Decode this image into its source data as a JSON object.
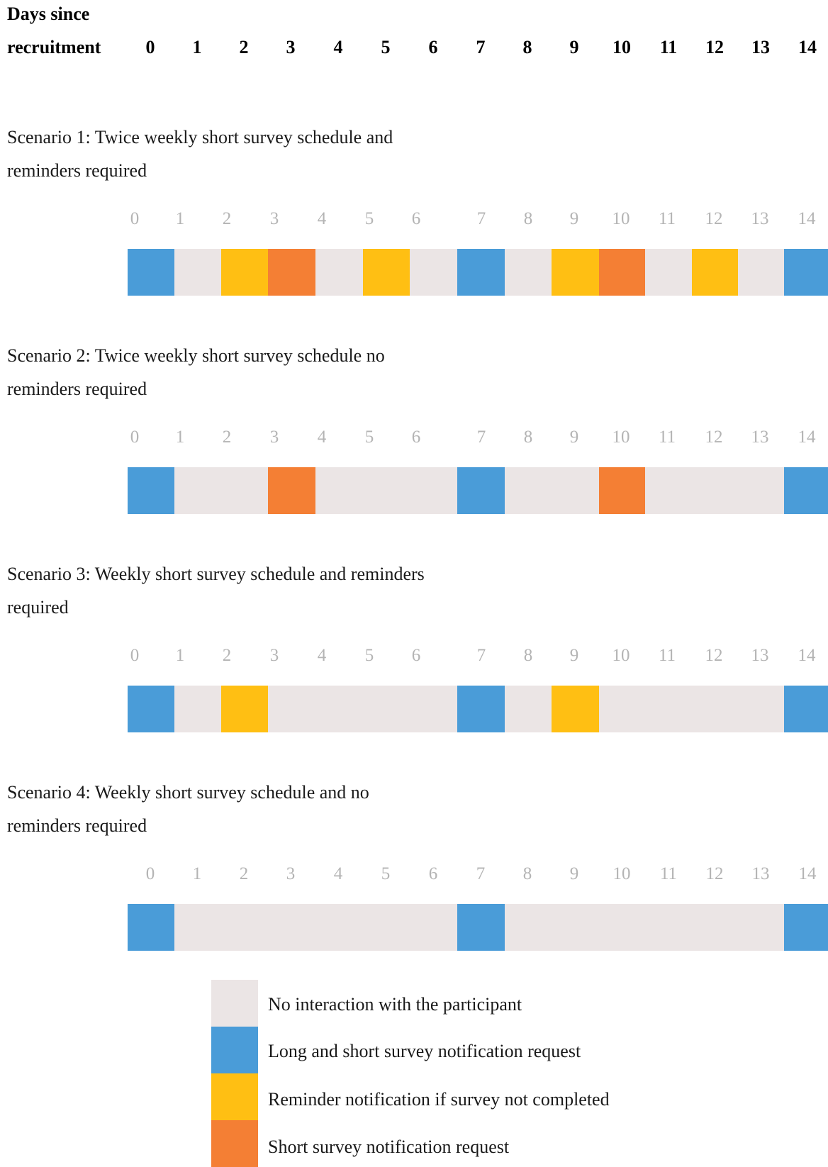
{
  "header": {
    "label_line1": "Days since",
    "label_line2": "recruitment",
    "days": [
      "0",
      "1",
      "2",
      "3",
      "4",
      "5",
      "6",
      "7",
      "8",
      "9",
      "10",
      "11",
      "12",
      "13",
      "14"
    ]
  },
  "colors": {
    "none": "#ebe5e5",
    "long_short": "#4a9cd8",
    "reminder": "#ffbf13",
    "short": "#f47f34"
  },
  "scenarios": [
    {
      "title_line1": "Scenario 1: Twice weekly short survey schedule and",
      "title_line2": "reminders required",
      "cells": [
        "long_short",
        "none",
        "reminder",
        "short",
        "none",
        "reminder",
        "none",
        "long_short",
        "none",
        "reminder",
        "short",
        "none",
        "reminder",
        "none",
        "long_short"
      ]
    },
    {
      "title_line1": "Scenario 2: Twice weekly short survey schedule no",
      "title_line2": "reminders required",
      "cells": [
        "long_short",
        "none",
        "none",
        "short",
        "none",
        "none",
        "none",
        "long_short",
        "none",
        "none",
        "short",
        "none",
        "none",
        "none",
        "long_short"
      ]
    },
    {
      "title_line1": "Scenario 3: Weekly short survey schedule and reminders",
      "title_line2": "required",
      "cells": [
        "long_short",
        "none",
        "reminder",
        "none",
        "none",
        "none",
        "none",
        "long_short",
        "none",
        "reminder",
        "none",
        "none",
        "none",
        "none",
        "long_short"
      ]
    },
    {
      "title_line1": "Scenario 4: Weekly short survey schedule and no",
      "title_line2": "reminders required",
      "cells": [
        "long_short",
        "none",
        "none",
        "none",
        "none",
        "none",
        "none",
        "long_short",
        "none",
        "none",
        "none",
        "none",
        "none",
        "none",
        "long_short"
      ]
    }
  ],
  "legend": [
    {
      "key": "none",
      "label": "No interaction with the participant"
    },
    {
      "key": "long_short",
      "label": "Long and short survey notification request"
    },
    {
      "key": "reminder",
      "label": "Reminder notification if survey not completed"
    },
    {
      "key": "short",
      "label": "Short survey notification request"
    }
  ]
}
